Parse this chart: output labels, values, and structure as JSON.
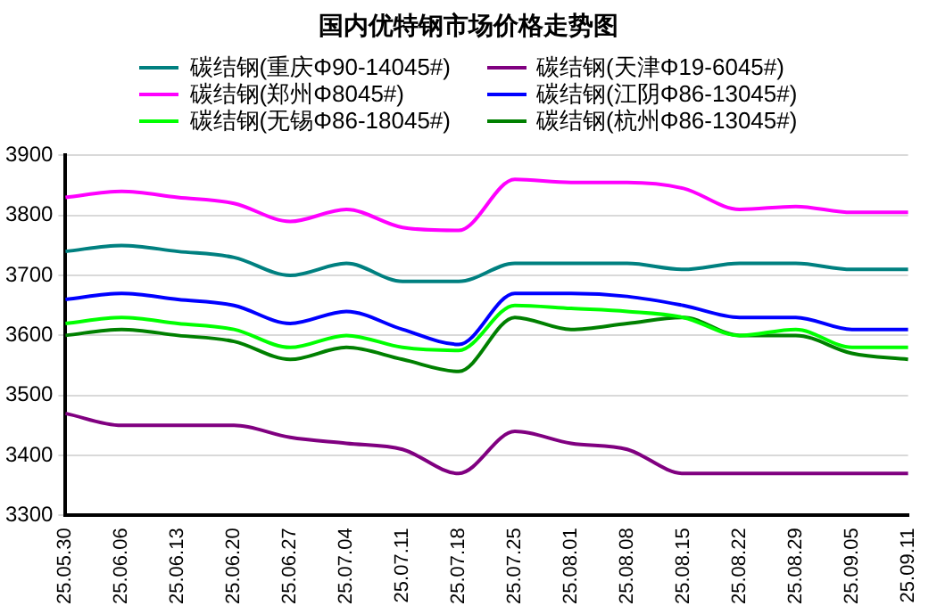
{
  "chart_data": {
    "type": "line",
    "title": "国内优特钢市场价格走势图",
    "categories": [
      "25.05.30",
      "25.06.06",
      "25.06.13",
      "25.06.20",
      "25.06.27",
      "25.07.04",
      "25.07.11",
      "25.07.18",
      "25.07.25",
      "25.08.01",
      "25.08.08",
      "25.08.15",
      "25.08.22",
      "25.08.29",
      "25.09.05",
      "25.09.11"
    ],
    "series": [
      {
        "name": "碳结钢(重庆Φ90-14045#)",
        "color": "#008080",
        "values": [
          3740,
          3750,
          3740,
          3730,
          3700,
          3720,
          3690,
          3690,
          3720,
          3720,
          3720,
          3710,
          3720,
          3720,
          3710,
          3710
        ]
      },
      {
        "name": "碳结钢(天津Φ19-6045#)",
        "color": "#800080",
        "values": [
          3470,
          3450,
          3450,
          3450,
          3430,
          3420,
          3410,
          3370,
          3440,
          3420,
          3410,
          3370,
          3370,
          3370,
          3370,
          3370
        ]
      },
      {
        "name": "碳结钢(郑州Φ8045#)",
        "color": "#ff00ff",
        "values": [
          3830,
          3840,
          3830,
          3820,
          3790,
          3810,
          3780,
          3775,
          3860,
          3855,
          3855,
          3845,
          3810,
          3815,
          3805,
          3805
        ]
      },
      {
        "name": "碳结钢(江阴Φ86-13045#)",
        "color": "#0000ff",
        "values": [
          3660,
          3670,
          3660,
          3650,
          3620,
          3640,
          3610,
          3585,
          3670,
          3670,
          3665,
          3650,
          3630,
          3630,
          3610,
          3610
        ]
      },
      {
        "name": "碳结钢(无锡Φ86-18045#)",
        "color": "#00ff00",
        "values": [
          3620,
          3630,
          3620,
          3610,
          3580,
          3600,
          3580,
          3575,
          3650,
          3645,
          3640,
          3630,
          3600,
          3610,
          3580,
          3580
        ]
      },
      {
        "name": "碳结钢(杭州Φ86-13045#)",
        "color": "#008000",
        "values": [
          3600,
          3610,
          3600,
          3590,
          3560,
          3580,
          3560,
          3540,
          3630,
          3610,
          3620,
          3630,
          3600,
          3600,
          3570,
          3560
        ]
      }
    ],
    "ylim": [
      3300,
      3900
    ],
    "yticks": [
      3300,
      3400,
      3500,
      3600,
      3700,
      3800,
      3900
    ],
    "grid": "y",
    "legend": "top",
    "marker": "none",
    "line_style": "solid"
  }
}
